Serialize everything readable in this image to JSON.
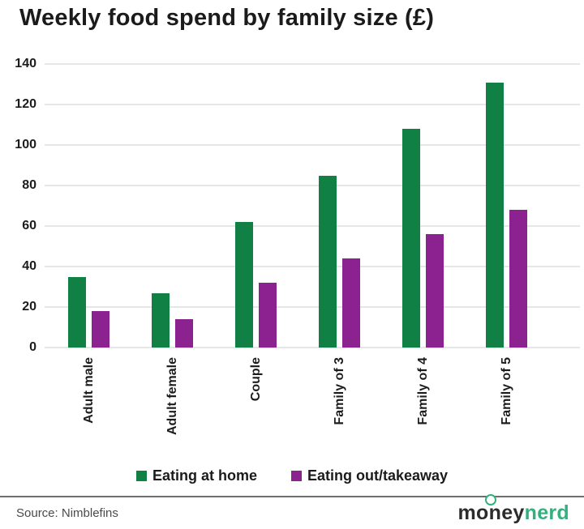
{
  "title": "Weekly food spend by family size (£)",
  "chart_data": {
    "type": "bar",
    "title": "Weekly food spend by family size (£)",
    "categories": [
      "Adult male",
      "Adult female",
      "Couple",
      "Family of 3",
      "Family of 4",
      "Family of 5"
    ],
    "series": [
      {
        "name": "Eating at home",
        "color": "#118045",
        "values": [
          35,
          27,
          62,
          85,
          108,
          131
        ]
      },
      {
        "name": "Eating out/takeaway",
        "color": "#8c2190",
        "values": [
          18,
          14,
          32,
          44,
          56,
          68
        ]
      }
    ],
    "xlabel": "",
    "ylabel": "",
    "ylim": [
      0,
      140
    ],
    "yticks": [
      0,
      20,
      40,
      60,
      80,
      100,
      120,
      140
    ],
    "grid": true,
    "gridline_color": "#e6e6e6",
    "legend_position": "bottom",
    "x_tick_rotation": 90
  },
  "footer": {
    "source": "Source: Nimblefins",
    "logo": {
      "part1": "money",
      "part2": "nerd"
    }
  }
}
